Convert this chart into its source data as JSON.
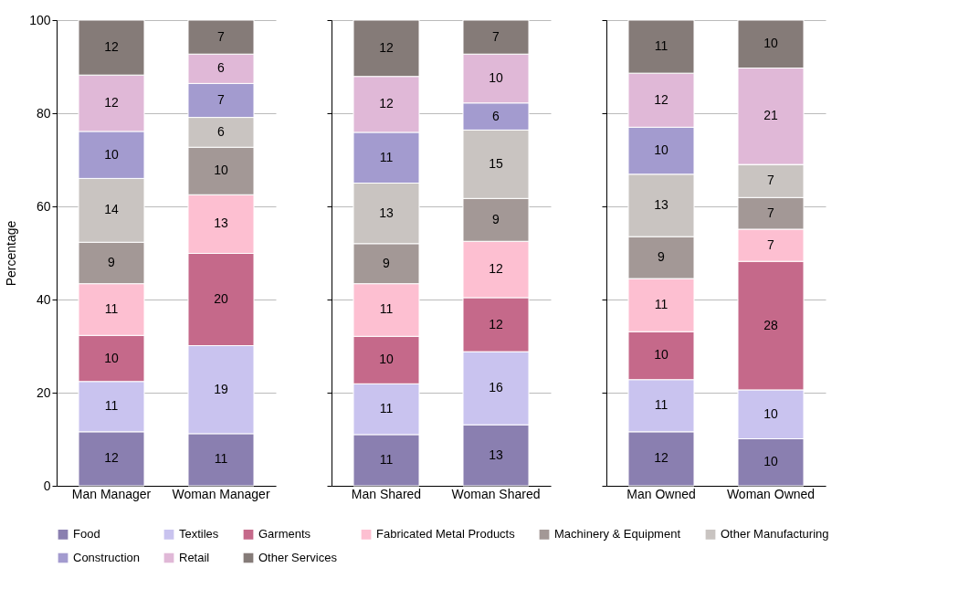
{
  "chart_data": [
    {
      "type": "bar",
      "stacked": true,
      "categories": [
        "Man Manager",
        "Woman Manager"
      ],
      "ylabel": "Percentage",
      "ylim": [
        0,
        100
      ],
      "yticks": [
        0,
        20,
        40,
        60,
        80,
        100
      ],
      "grid": "y",
      "legend": "bottom",
      "series": [
        {
          "name": "Food",
          "color": "#8a7fb0",
          "values": [
            11.6,
            11.2
          ],
          "value_labels": [
            "12",
            "11"
          ]
        },
        {
          "name": "Textiles",
          "color": "#c9c3ef",
          "values": [
            10.8,
            18.9
          ],
          "value_labels": [
            "11",
            "19"
          ]
        },
        {
          "name": "Garments",
          "color": "#c5698a",
          "values": [
            9.9,
            19.8
          ],
          "value_labels": [
            "10",
            "20"
          ]
        },
        {
          "name": "Fabricated Metal Products",
          "color": "#fdbfd1",
          "values": [
            11.1,
            12.6
          ],
          "value_labels": [
            "11",
            "13"
          ]
        },
        {
          "name": "Machinery & Equipment",
          "color": "#a39896",
          "values": [
            8.9,
            10.2
          ],
          "value_labels": [
            "9",
            "10"
          ]
        },
        {
          "name": "Other Manufacturing",
          "color": "#c9c4c1",
          "values": [
            13.7,
            6.4
          ],
          "value_labels": [
            "14",
            "6"
          ]
        },
        {
          "name": "Construction",
          "color": "#a39bcf",
          "values": [
            10.1,
            7.3
          ],
          "value_labels": [
            "10",
            "7"
          ]
        },
        {
          "name": "Retail",
          "color": "#e0b8d7",
          "values": [
            12.1,
            6.3
          ],
          "value_labels": [
            "12",
            "6"
          ]
        },
        {
          "name": "Other Services",
          "color": "#857b78",
          "values": [
            11.8,
            7.3
          ],
          "value_labels": [
            "12",
            "7"
          ]
        }
      ]
    },
    {
      "type": "bar",
      "stacked": true,
      "categories": [
        "Man Shared",
        "Woman Shared"
      ],
      "ylim": [
        0,
        100
      ],
      "yticks": [
        0,
        20,
        40,
        60,
        80,
        100
      ],
      "grid": "y",
      "legend": "bottom",
      "tick_labels": "x",
      "series": [
        {
          "name": "Food",
          "color": "#8a7fb0",
          "values": [
            11.0,
            13.1
          ],
          "value_labels": [
            "11",
            "13"
          ]
        },
        {
          "name": "Textiles",
          "color": "#c9c3ef",
          "values": [
            10.9,
            15.7
          ],
          "value_labels": [
            "11",
            "16"
          ]
        },
        {
          "name": "Garments",
          "color": "#c5698a",
          "values": [
            10.2,
            11.6
          ],
          "value_labels": [
            "10",
            "12"
          ]
        },
        {
          "name": "Fabricated Metal Products",
          "color": "#fdbfd1",
          "values": [
            11.3,
            12.1
          ],
          "value_labels": [
            "11",
            "12"
          ]
        },
        {
          "name": "Machinery & Equipment",
          "color": "#a39896",
          "values": [
            8.6,
            9.2
          ],
          "value_labels": [
            "9",
            "9"
          ]
        },
        {
          "name": "Other Manufacturing",
          "color": "#c9c4c1",
          "values": [
            13.0,
            14.7
          ],
          "value_labels": [
            "13",
            "15"
          ]
        },
        {
          "name": "Construction",
          "color": "#a39bcf",
          "values": [
            10.9,
            5.8
          ],
          "value_labels": [
            "11",
            "6"
          ]
        },
        {
          "name": "Retail",
          "color": "#e0b8d7",
          "values": [
            12.0,
            10.5
          ],
          "value_labels": [
            "12",
            "10"
          ]
        },
        {
          "name": "Other Services",
          "color": "#857b78",
          "values": [
            12.1,
            7.3
          ],
          "value_labels": [
            "12",
            "7"
          ]
        }
      ]
    },
    {
      "type": "bar",
      "stacked": true,
      "categories": [
        "Man Owned",
        "Woman Owned"
      ],
      "ylim": [
        0,
        100
      ],
      "yticks": [
        0,
        20,
        40,
        60,
        80,
        100
      ],
      "grid": "y",
      "legend": "bottom",
      "tick_labels": "x",
      "series": [
        {
          "name": "Food",
          "color": "#8a7fb0",
          "values": [
            11.6,
            10.1
          ],
          "value_labels": [
            "12",
            "10"
          ]
        },
        {
          "name": "Textiles",
          "color": "#c9c3ef",
          "values": [
            11.2,
            10.5
          ],
          "value_labels": [
            "11",
            "10"
          ]
        },
        {
          "name": "Garments",
          "color": "#c5698a",
          "values": [
            10.3,
            27.6
          ],
          "value_labels": [
            "10",
            "28"
          ]
        },
        {
          "name": "Fabricated Metal Products",
          "color": "#fdbfd1",
          "values": [
            11.4,
            6.9
          ],
          "value_labels": [
            "11",
            "7"
          ]
        },
        {
          "name": "Machinery & Equipment",
          "color": "#a39896",
          "values": [
            9.0,
            6.8
          ],
          "value_labels": [
            "9",
            "7"
          ]
        },
        {
          "name": "Other Manufacturing",
          "color": "#c9c4c1",
          "values": [
            13.4,
            7.1
          ],
          "value_labels": [
            "13",
            "7"
          ]
        },
        {
          "name": "Construction",
          "color": "#a39bcf",
          "values": [
            10.1,
            0
          ],
          "value_labels": [
            "10",
            null
          ]
        },
        {
          "name": "Retail",
          "color": "#e0b8d7",
          "values": [
            11.6,
            20.7
          ],
          "value_labels": [
            "12",
            "21"
          ]
        },
        {
          "name": "Other Services",
          "color": "#857b78",
          "values": [
            11.4,
            10.3
          ],
          "value_labels": [
            "11",
            "10"
          ]
        }
      ]
    }
  ]
}
